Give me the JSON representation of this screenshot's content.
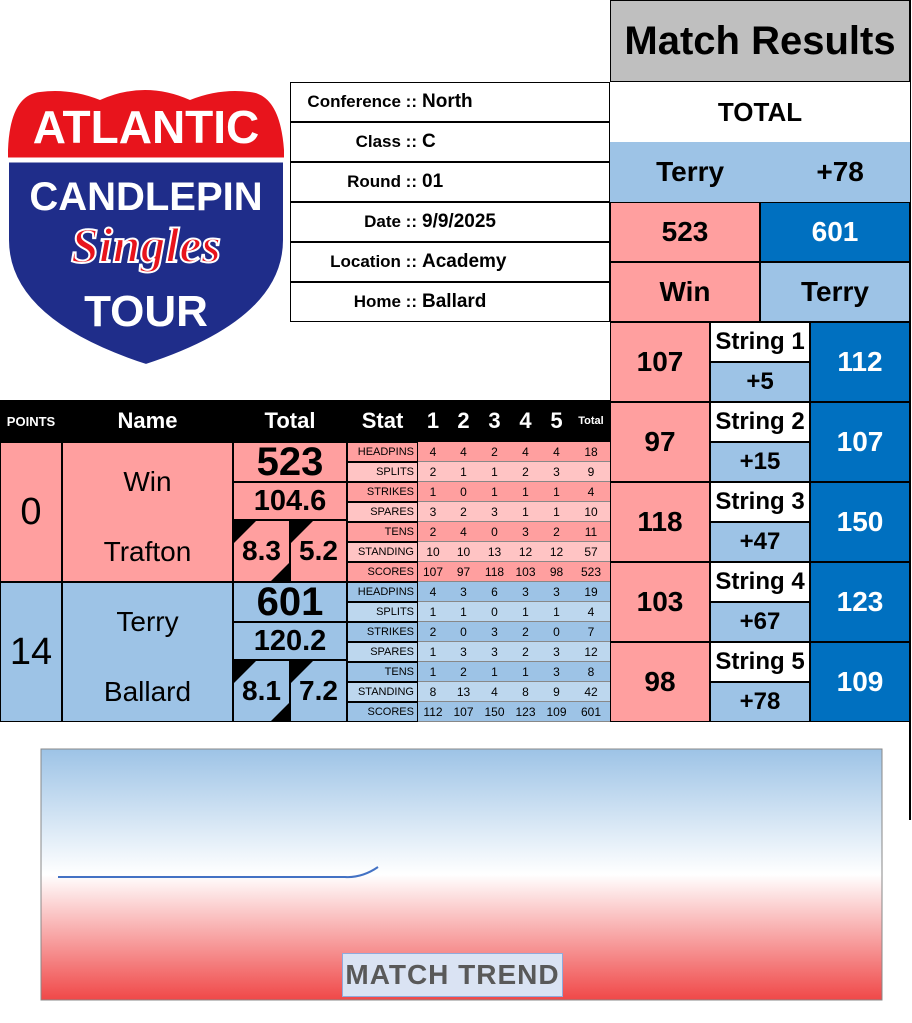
{
  "logo": {
    "line1": "ATLANTIC",
    "line2": "CANDLEPIN",
    "line3": "Singles",
    "line4": "TOUR"
  },
  "info": [
    {
      "label": "Conference ::",
      "value": "North"
    },
    {
      "label": "Class ::",
      "value": "C"
    },
    {
      "label": "Round ::",
      "value": "01"
    },
    {
      "label": "Date ::",
      "value": "9/9/2025"
    },
    {
      "label": "Location ::",
      "value": "Academy"
    },
    {
      "label": "Home ::",
      "value": "Ballard"
    }
  ],
  "results": {
    "title": "Match Results",
    "total_label": "TOTAL",
    "leader": "Terry",
    "margin": "+78",
    "scores": [
      523,
      601
    ],
    "names": [
      "Win",
      "Terry"
    ],
    "strings": [
      {
        "left": 107,
        "label": "String 1",
        "diff": "+5",
        "right": 112
      },
      {
        "left": 97,
        "label": "String 2",
        "diff": "+15",
        "right": 107
      },
      {
        "left": 118,
        "label": "String 3",
        "diff": "+47",
        "right": 150
      },
      {
        "left": 103,
        "label": "String 4",
        "diff": "+67",
        "right": 123
      },
      {
        "left": 98,
        "label": "String 5",
        "diff": "+78",
        "right": 109
      }
    ]
  },
  "table": {
    "headers": [
      "POINTS",
      "Name",
      "Total",
      "Stat",
      "1",
      "2",
      "3",
      "4",
      "5",
      "Total"
    ],
    "players": [
      {
        "points": 0,
        "first": "Win",
        "last": "Trafton",
        "total": 523,
        "average": 104.6,
        "stat_a": 8.3,
        "stat_b": 5.2,
        "stats": [
          {
            "name": "HEADPINS",
            "values": [
              4,
              4,
              2,
              4,
              4,
              18
            ]
          },
          {
            "name": "SPLITS",
            "values": [
              2,
              1,
              1,
              2,
              3,
              9
            ]
          },
          {
            "name": "STRIKES",
            "values": [
              1,
              0,
              1,
              1,
              1,
              4
            ]
          },
          {
            "name": "SPARES",
            "values": [
              3,
              2,
              3,
              1,
              1,
              10
            ]
          },
          {
            "name": "TENS",
            "values": [
              2,
              4,
              0,
              3,
              2,
              11
            ]
          },
          {
            "name": "STANDING",
            "values": [
              10,
              10,
              13,
              12,
              12,
              57
            ]
          },
          {
            "name": "SCORES",
            "values": [
              107,
              97,
              118,
              103,
              98,
              523
            ]
          }
        ]
      },
      {
        "points": 14,
        "first": "Terry",
        "last": "Ballard",
        "total": 601,
        "average": 120.2,
        "stat_a": 8.1,
        "stat_b": 7.2,
        "stats": [
          {
            "name": "HEADPINS",
            "values": [
              4,
              3,
              6,
              3,
              3,
              19
            ]
          },
          {
            "name": "SPLITS",
            "values": [
              1,
              1,
              0,
              1,
              1,
              4
            ]
          },
          {
            "name": "STRIKES",
            "values": [
              2,
              0,
              3,
              2,
              0,
              7
            ]
          },
          {
            "name": "SPARES",
            "values": [
              1,
              3,
              3,
              2,
              3,
              12
            ]
          },
          {
            "name": "TENS",
            "values": [
              1,
              2,
              1,
              1,
              3,
              8
            ]
          },
          {
            "name": "STANDING",
            "values": [
              8,
              13,
              4,
              8,
              9,
              42
            ]
          },
          {
            "name": "SCORES",
            "values": [
              112,
              107,
              150,
              123,
              109,
              601
            ]
          }
        ]
      }
    ]
  },
  "trend": {
    "label": "MATCH TREND"
  }
}
